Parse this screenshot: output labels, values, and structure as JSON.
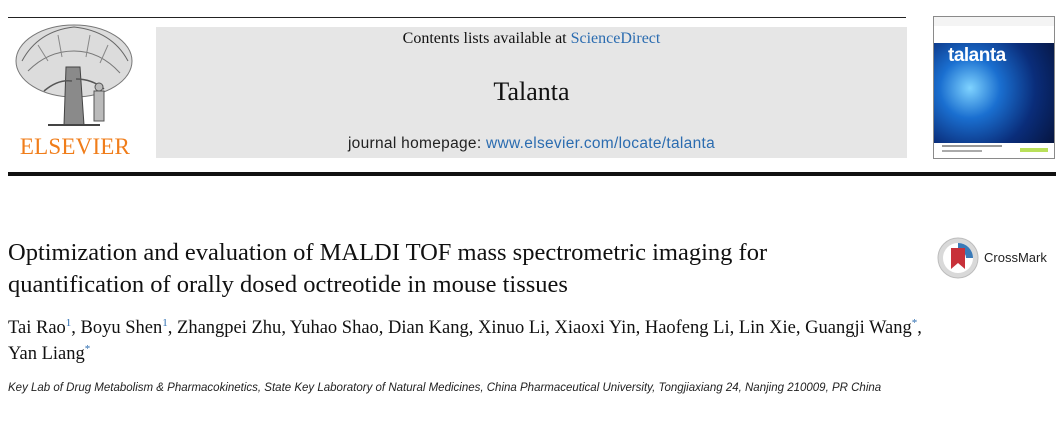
{
  "header": {
    "publisher_logo_text": "ELSEVIER",
    "contents_prefix": "Contents lists available at ",
    "contents_link": "ScienceDirect",
    "journal_name": "Talanta",
    "homepage_prefix": "journal homepage: ",
    "homepage_url": "www.elsevier.com/locate/talanta",
    "cover_title": "talanta"
  },
  "article": {
    "title": "Optimization and evaluation of MALDI TOF mass spectrometric imaging for quantification of orally dosed octreotide in mouse tissues",
    "crossmark_label": "CrossMark",
    "authors": [
      {
        "name": "Tai Rao",
        "mark": "1",
        "sep": ", "
      },
      {
        "name": "Boyu Shen",
        "mark": "1",
        "sep": ", "
      },
      {
        "name": "Zhangpei Zhu",
        "mark": "",
        "sep": ", "
      },
      {
        "name": "Yuhao Shao",
        "mark": "",
        "sep": ", "
      },
      {
        "name": "Dian Kang",
        "mark": "",
        "sep": ", "
      },
      {
        "name": "Xinuo Li",
        "mark": "",
        "sep": ", "
      },
      {
        "name": "Xiaoxi Yin",
        "mark": "",
        "sep": ", "
      },
      {
        "name": "Haofeng Li",
        "mark": "",
        "sep": ", "
      },
      {
        "name": "Lin Xie",
        "mark": "",
        "sep": ", "
      },
      {
        "name": "Guangji Wang",
        "mark": "*",
        "sep": ", "
      },
      {
        "name": "Yan Liang",
        "mark": "*",
        "sep": ""
      }
    ],
    "affiliation": "Key Lab of Drug Metabolism & Pharmacokinetics, State Key Laboratory of Natural Medicines, China Pharmaceutical University, Tongjiaxiang 24, Nanjing 210009, PR China"
  },
  "colors": {
    "elsevier_orange": "#f07d1a",
    "link_blue": "#2b6cb0",
    "masthead_grey": "#e6e6e6"
  }
}
